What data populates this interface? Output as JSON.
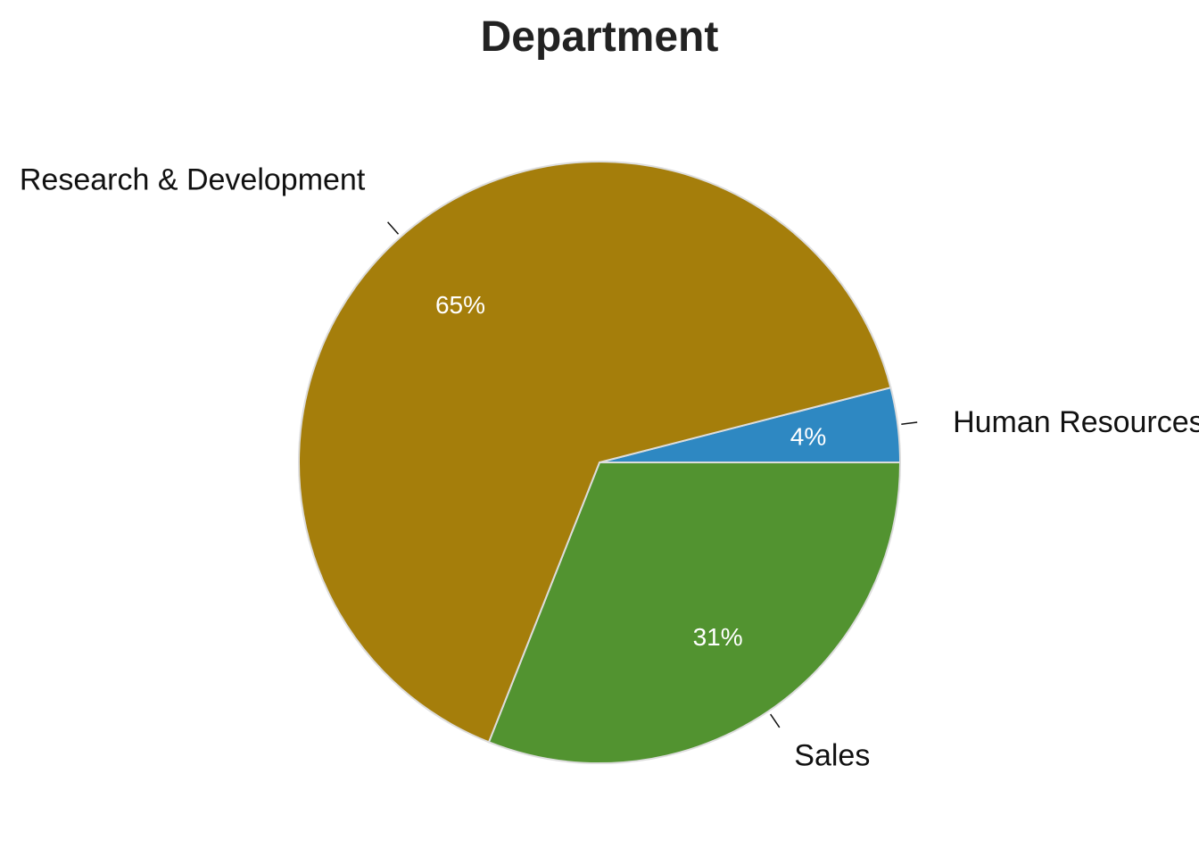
{
  "chart_data": {
    "type": "pie",
    "title": "Department",
    "slices": [
      {
        "label": "Human Resources",
        "value": 4,
        "percent_label": "4%",
        "color": "#2E88C2"
      },
      {
        "label": "Sales",
        "value": 31,
        "percent_label": "31%",
        "color": "#529330"
      },
      {
        "label": "Research & Development",
        "value": 65,
        "percent_label": "65%",
        "color": "#A57E0B"
      }
    ],
    "start_angle_deg": 0,
    "direction": "clockwise",
    "slice_border_color": "#DDDDDD"
  }
}
